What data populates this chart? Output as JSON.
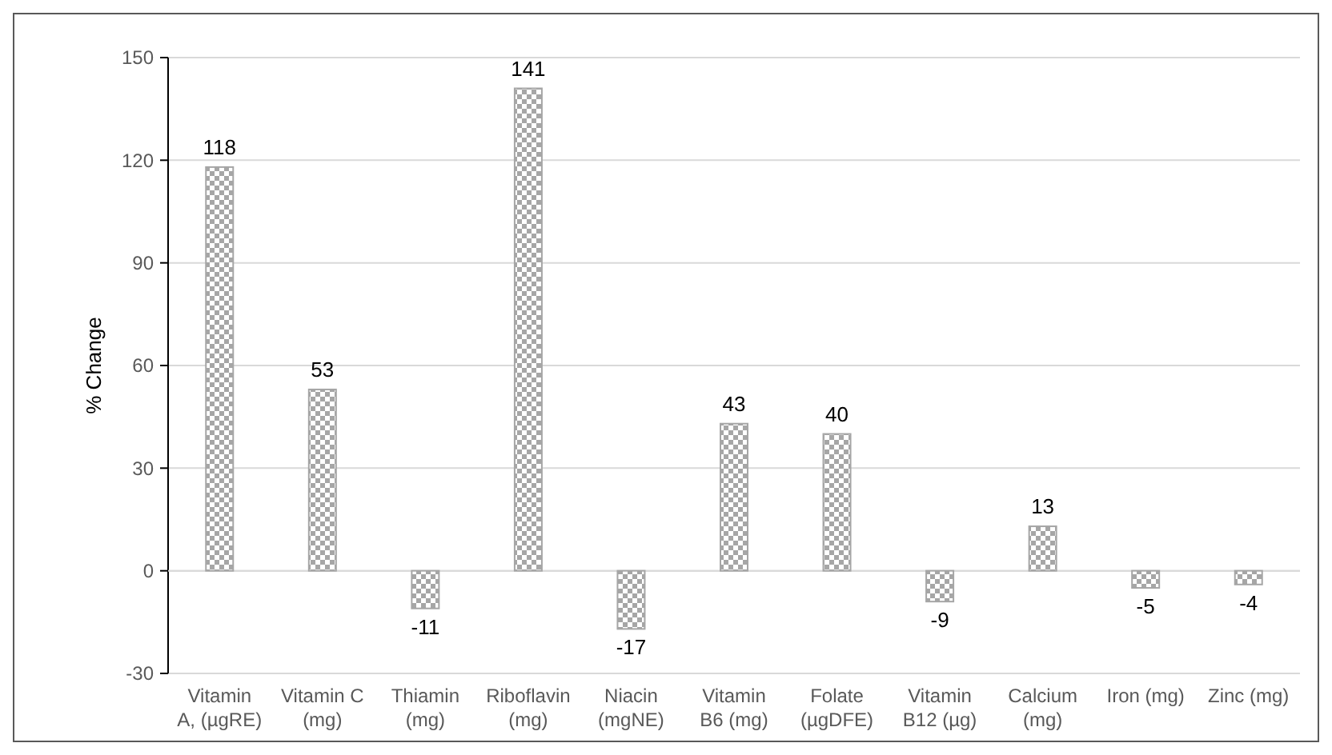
{
  "chart_data": {
    "type": "bar",
    "ylabel": "% Change",
    "categories": [
      "Vitamin A, (µgRE)",
      "Vitamin C (mg)",
      "Thiamin (mg)",
      "Riboflavin (mg)",
      "Niacin (mgNE)",
      "Vitamin B6 (mg)",
      "Folate (µgDFE)",
      "Vitamin B12 (µg)",
      "Calcium (mg)",
      "Iron (mg)",
      "Zinc (mg)"
    ],
    "values": [
      118,
      53,
      -11,
      141,
      -17,
      43,
      40,
      -9,
      13,
      -5,
      -4
    ],
    "color": "#a6a6a6",
    "ylim": [
      -30,
      150
    ],
    "yticks": [
      -30,
      0,
      30,
      60,
      90,
      120,
      150
    ],
    "grid": "y",
    "data_labels": true
  }
}
